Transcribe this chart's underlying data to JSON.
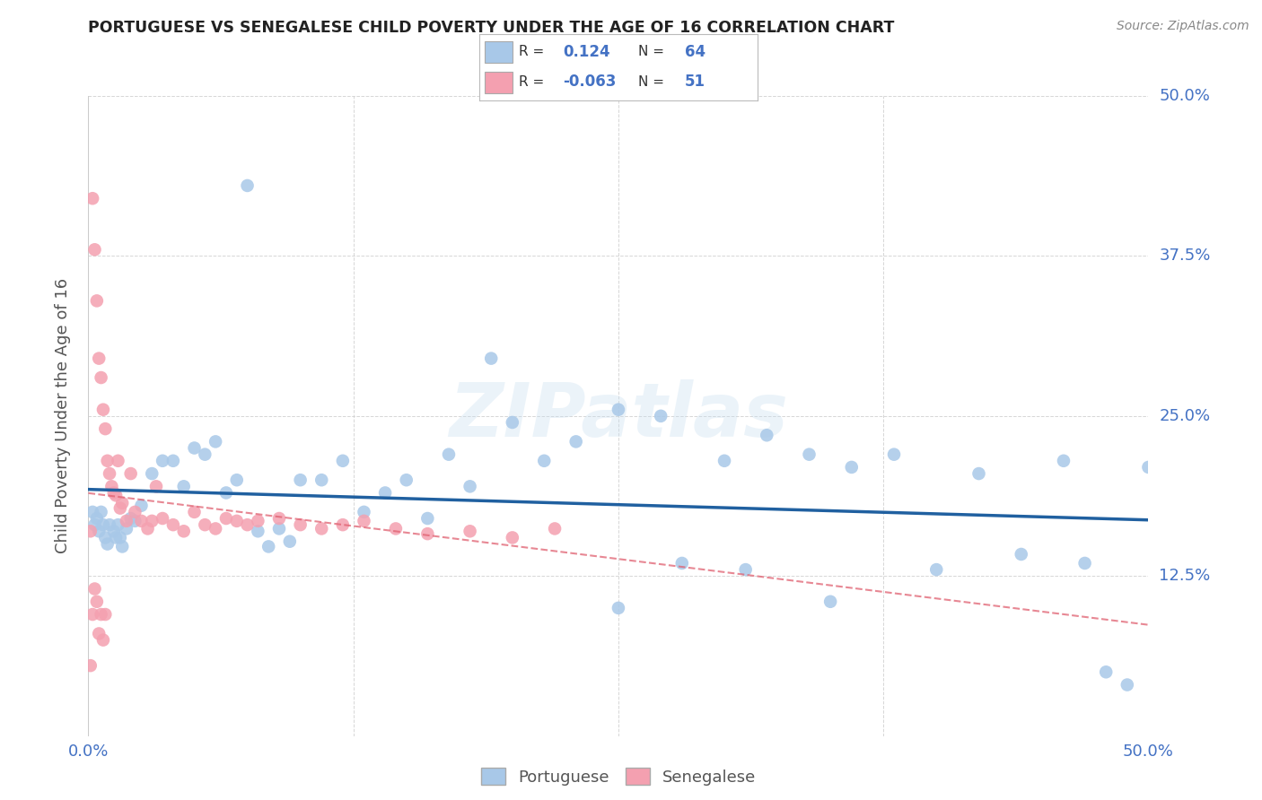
{
  "title": "PORTUGUESE VS SENEGALESE CHILD POVERTY UNDER THE AGE OF 16 CORRELATION CHART",
  "source": "Source: ZipAtlas.com",
  "ylabel": "Child Poverty Under the Age of 16",
  "xlim": [
    0,
    0.5
  ],
  "ylim": [
    0,
    0.5
  ],
  "portuguese_R": 0.124,
  "portuguese_N": 64,
  "senegalese_R": -0.063,
  "senegalese_N": 51,
  "portuguese_color": "#a8c8e8",
  "senegalese_color": "#f4a0b0",
  "portuguese_line_color": "#2060a0",
  "senegalese_line_color": "#e06070",
  "watermark_text": "ZIPatlas",
  "portuguese_x": [
    0.002,
    0.003,
    0.004,
    0.005,
    0.006,
    0.007,
    0.008,
    0.009,
    0.01,
    0.012,
    0.013,
    0.014,
    0.015,
    0.016,
    0.018,
    0.02,
    0.022,
    0.025,
    0.03,
    0.035,
    0.04,
    0.045,
    0.05,
    0.055,
    0.06,
    0.065,
    0.07,
    0.075,
    0.08,
    0.085,
    0.09,
    0.095,
    0.1,
    0.11,
    0.12,
    0.13,
    0.14,
    0.15,
    0.16,
    0.17,
    0.18,
    0.19,
    0.2,
    0.215,
    0.23,
    0.25,
    0.27,
    0.3,
    0.32,
    0.34,
    0.36,
    0.38,
    0.4,
    0.42,
    0.44,
    0.46,
    0.47,
    0.48,
    0.49,
    0.5,
    0.35,
    0.25,
    0.28,
    0.31
  ],
  "portuguese_y": [
    0.175,
    0.165,
    0.17,
    0.16,
    0.175,
    0.165,
    0.155,
    0.15,
    0.165,
    0.16,
    0.155,
    0.165,
    0.155,
    0.148,
    0.162,
    0.17,
    0.168,
    0.18,
    0.205,
    0.215,
    0.215,
    0.195,
    0.225,
    0.22,
    0.23,
    0.19,
    0.2,
    0.43,
    0.16,
    0.148,
    0.162,
    0.152,
    0.2,
    0.2,
    0.215,
    0.175,
    0.19,
    0.2,
    0.17,
    0.22,
    0.195,
    0.295,
    0.245,
    0.215,
    0.23,
    0.255,
    0.25,
    0.215,
    0.235,
    0.22,
    0.21,
    0.22,
    0.13,
    0.205,
    0.142,
    0.215,
    0.135,
    0.05,
    0.04,
    0.21,
    0.105,
    0.1,
    0.135,
    0.13
  ],
  "senegalese_x": [
    0.001,
    0.001,
    0.002,
    0.002,
    0.003,
    0.003,
    0.004,
    0.004,
    0.005,
    0.005,
    0.006,
    0.006,
    0.007,
    0.007,
    0.008,
    0.008,
    0.009,
    0.01,
    0.011,
    0.012,
    0.013,
    0.014,
    0.015,
    0.016,
    0.018,
    0.02,
    0.022,
    0.025,
    0.028,
    0.03,
    0.032,
    0.035,
    0.04,
    0.045,
    0.05,
    0.055,
    0.06,
    0.065,
    0.07,
    0.075,
    0.08,
    0.09,
    0.1,
    0.11,
    0.12,
    0.13,
    0.145,
    0.16,
    0.18,
    0.2,
    0.22
  ],
  "senegalese_y": [
    0.16,
    0.055,
    0.42,
    0.095,
    0.38,
    0.115,
    0.34,
    0.105,
    0.295,
    0.08,
    0.28,
    0.095,
    0.255,
    0.075,
    0.24,
    0.095,
    0.215,
    0.205,
    0.195,
    0.19,
    0.188,
    0.215,
    0.178,
    0.182,
    0.168,
    0.205,
    0.175,
    0.168,
    0.162,
    0.168,
    0.195,
    0.17,
    0.165,
    0.16,
    0.175,
    0.165,
    0.162,
    0.17,
    0.168,
    0.165,
    0.168,
    0.17,
    0.165,
    0.162,
    0.165,
    0.168,
    0.162,
    0.158,
    0.16,
    0.155,
    0.162
  ]
}
